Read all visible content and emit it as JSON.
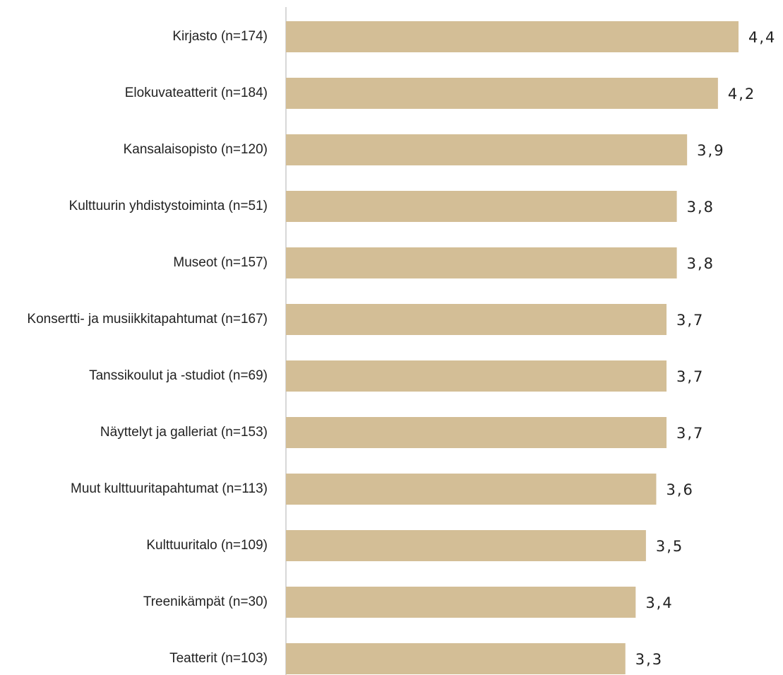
{
  "chart_data": {
    "type": "bar",
    "orientation": "horizontal",
    "categories": [
      "Kirjasto (n=174)",
      "Elokuvateatterit (n=184)",
      "Kansalaisopisto (n=120)",
      "Kulttuurin yhdistystoiminta (n=51)",
      "Museot (n=157)",
      "Konsertti- ja musiikkitapahtumat (n=167)",
      "Tanssikoulut ja -studiot (n=69)",
      "Näyttelyt ja galleriat (n=153)",
      "Muut kulttuuritapahtumat (n=113)",
      "Kulttuuritalo (n=109)",
      "Treenikämpät (n=30)",
      "Teatterit (n=103)"
    ],
    "values": [
      4.4,
      4.2,
      3.9,
      3.8,
      3.8,
      3.7,
      3.7,
      3.7,
      3.6,
      3.5,
      3.4,
      3.3
    ],
    "value_labels": [
      "4,4",
      "4,2",
      "3,9",
      "3,8",
      "3,8",
      "3,7",
      "3,7",
      "3,7",
      "3,6",
      "3,5",
      "3,4",
      "3,3"
    ],
    "color": "#d3be96"
  }
}
